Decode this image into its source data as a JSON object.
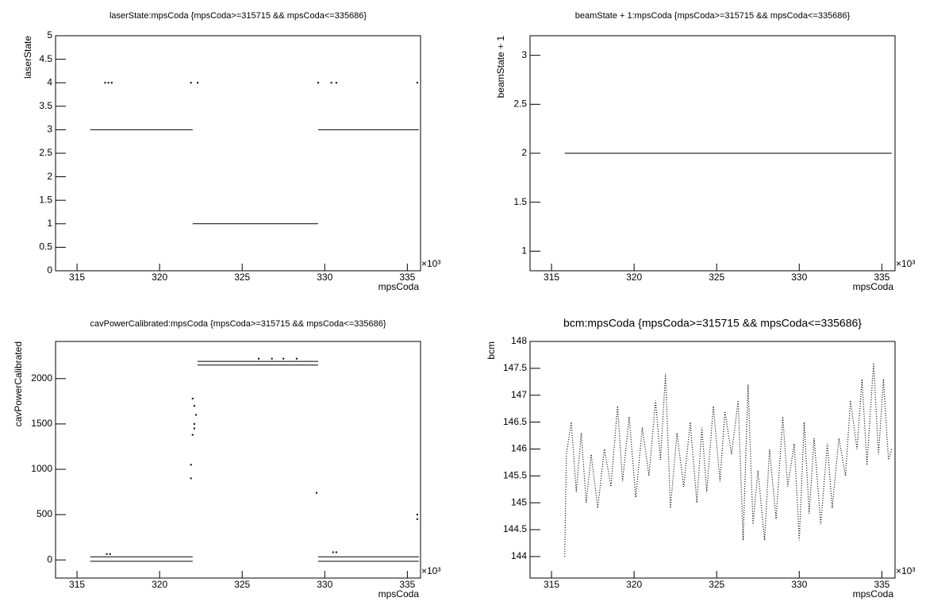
{
  "chart_data": [
    {
      "type": "scatter",
      "title": "laserState:mpsCoda {mpsCoda>=315715 && mpsCoda<=335686}",
      "x_label": "mpsCoda",
      "y_label": "laserState",
      "x_exponent": "×10³",
      "xlim": [
        313.7,
        335.8
      ],
      "xticks": [
        315,
        320,
        325,
        330,
        335
      ],
      "ylim": [
        0,
        5
      ],
      "yticks": [
        0,
        0.5,
        1,
        1.5,
        2,
        2.5,
        3,
        3.5,
        4,
        4.5,
        5
      ],
      "series": [
        {
          "style": "line",
          "color": "#000000",
          "x": [
            315.8,
            322.0,
            null,
            322.0,
            329.6,
            null,
            329.6,
            335.7
          ],
          "y": [
            3,
            3,
            null,
            1,
            1,
            null,
            3,
            3
          ]
        },
        {
          "style": "points",
          "color": "#000000",
          "x": [
            316.7,
            316.9,
            317.1,
            321.9,
            322.3,
            329.6,
            330.4,
            330.7,
            335.6
          ],
          "y": [
            4,
            4,
            4,
            4,
            4,
            4,
            4,
            4,
            4
          ]
        }
      ]
    },
    {
      "type": "scatter",
      "title": "beamState + 1:mpsCoda {mpsCoda>=315715 && mpsCoda<=335686}",
      "x_label": "mpsCoda",
      "y_label": "beamState + 1",
      "x_exponent": "×10³",
      "xlim": [
        313.7,
        335.8
      ],
      "xticks": [
        315,
        320,
        325,
        330,
        335
      ],
      "ylim": [
        0.8,
        3.2
      ],
      "yticks": [
        1,
        1.5,
        2,
        2.5,
        3
      ],
      "series": [
        {
          "style": "line",
          "color": "#000000",
          "x": [
            315.8,
            335.6
          ],
          "y": [
            2,
            2
          ]
        }
      ]
    },
    {
      "type": "scatter",
      "title": "cavPowerCalibrated:mpsCoda {mpsCoda>=315715 && mpsCoda<=335686}",
      "x_label": "mpsCoda",
      "y_label": "cavPowerCalibrated",
      "x_exponent": "×10³",
      "xlim": [
        313.7,
        335.8
      ],
      "xticks": [
        315,
        320,
        325,
        330,
        335
      ],
      "ylim": [
        -200,
        2410
      ],
      "yticks": [
        0,
        500,
        1000,
        1500,
        2000
      ],
      "series": [
        {
          "style": "line",
          "color": "#000000",
          "x": [
            315.8,
            322.0,
            null,
            322.3,
            329.6,
            null,
            329.6,
            335.7
          ],
          "y": [
            35,
            35,
            null,
            2190,
            2190,
            null,
            35,
            35
          ]
        },
        {
          "style": "line",
          "color": "#000000",
          "x": [
            315.8,
            322.0,
            null,
            322.3,
            329.6,
            null,
            329.6,
            335.7
          ],
          "y": [
            -15,
            -15,
            null,
            2150,
            2150,
            null,
            -15,
            -15
          ]
        },
        {
          "style": "points",
          "color": "#000000",
          "x": [
            321.9,
            321.9,
            322.0,
            322.1,
            322.1,
            322.2,
            322.1,
            322.0,
            329.5,
            335.6,
            335.6,
            326.0,
            326.8,
            327.5,
            328.3,
            316.8,
            317.0,
            330.5,
            330.7
          ],
          "y": [
            900,
            1050,
            1380,
            1450,
            1500,
            1600,
            1700,
            1780,
            740,
            450,
            500,
            2220,
            2220,
            2220,
            2220,
            65,
            65,
            85,
            85
          ]
        }
      ]
    },
    {
      "type": "scatter",
      "title": "bcm:mpsCoda {mpsCoda>=315715 && mpsCoda<=335686}",
      "x_label": "mpsCoda",
      "y_label": "bcm",
      "x_exponent": "×10³",
      "xlim": [
        313.7,
        335.8
      ],
      "xticks": [
        315,
        320,
        325,
        330,
        335
      ],
      "ylim": [
        143.6,
        148
      ],
      "yticks": [
        144,
        144.5,
        145,
        145.5,
        146,
        146.5,
        147,
        147.5,
        148
      ],
      "series": [
        {
          "style": "dotted",
          "color": "#000000",
          "x": [
            315.8,
            315.9,
            316.2,
            316.5,
            316.8,
            317.1,
            317.4,
            317.8,
            318.2,
            318.6,
            319.0,
            319.3,
            319.7,
            320.1,
            320.5,
            320.9,
            321.3,
            321.6,
            321.9,
            322.2,
            322.6,
            323.0,
            323.4,
            323.8,
            324.1,
            324.4,
            324.8,
            325.2,
            325.5,
            325.9,
            326.3,
            326.6,
            326.9,
            327.2,
            327.5,
            327.9,
            328.2,
            328.6,
            329.0,
            329.3,
            329.7,
            330.0,
            330.3,
            330.6,
            330.9,
            331.3,
            331.7,
            332.0,
            332.4,
            332.8,
            333.1,
            333.5,
            333.8,
            334.1,
            334.5,
            334.8,
            335.1,
            335.4,
            335.6
          ],
          "y": [
            144.0,
            145.9,
            146.5,
            145.2,
            146.3,
            145.0,
            145.9,
            144.9,
            146.0,
            145.3,
            146.8,
            145.4,
            146.6,
            145.1,
            146.4,
            145.5,
            146.9,
            145.8,
            147.4,
            144.9,
            146.3,
            145.3,
            146.5,
            145.0,
            146.4,
            145.2,
            146.8,
            145.4,
            146.7,
            145.9,
            146.9,
            144.3,
            147.2,
            144.6,
            145.6,
            144.3,
            146.0,
            144.7,
            146.6,
            145.3,
            146.1,
            144.3,
            146.5,
            144.8,
            146.2,
            144.6,
            146.1,
            144.9,
            146.2,
            145.5,
            146.9,
            146.0,
            147.3,
            145.7,
            147.6,
            145.9,
            147.3,
            145.8,
            146.0
          ]
        }
      ]
    }
  ]
}
